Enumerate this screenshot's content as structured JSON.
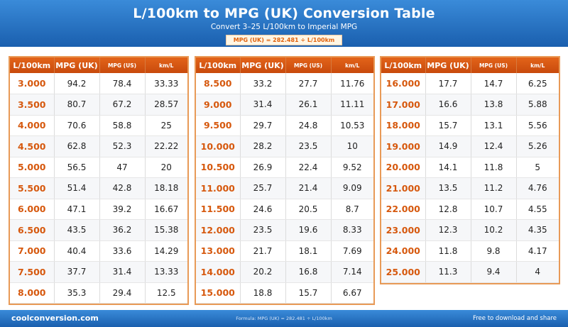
{
  "header": {
    "title": "L/100km to MPG (UK) Conversion Table",
    "subtitle": "Convert 3–25 L/100km to Imperial MPG",
    "formula_badge": "MPG (UK) = 282.481 ÷ L/100km"
  },
  "columns": [
    "L/100km",
    "MPG (UK)",
    "MPG (US)",
    "km/L"
  ],
  "tables": [
    [
      [
        "3.000",
        "94.2",
        "78.4",
        "33.33"
      ],
      [
        "3.500",
        "80.7",
        "67.2",
        "28.57"
      ],
      [
        "4.000",
        "70.6",
        "58.8",
        "25"
      ],
      [
        "4.500",
        "62.8",
        "52.3",
        "22.22"
      ],
      [
        "5.000",
        "56.5",
        "47",
        "20"
      ],
      [
        "5.500",
        "51.4",
        "42.8",
        "18.18"
      ],
      [
        "6.000",
        "47.1",
        "39.2",
        "16.67"
      ],
      [
        "6.500",
        "43.5",
        "36.2",
        "15.38"
      ],
      [
        "7.000",
        "40.4",
        "33.6",
        "14.29"
      ],
      [
        "7.500",
        "37.7",
        "31.4",
        "13.33"
      ],
      [
        "8.000",
        "35.3",
        "29.4",
        "12.5"
      ]
    ],
    [
      [
        "8.500",
        "33.2",
        "27.7",
        "11.76"
      ],
      [
        "9.000",
        "31.4",
        "26.1",
        "11.11"
      ],
      [
        "9.500",
        "29.7",
        "24.8",
        "10.53"
      ],
      [
        "10.000",
        "28.2",
        "23.5",
        "10"
      ],
      [
        "10.500",
        "26.9",
        "22.4",
        "9.52"
      ],
      [
        "11.000",
        "25.7",
        "21.4",
        "9.09"
      ],
      [
        "11.500",
        "24.6",
        "20.5",
        "8.7"
      ],
      [
        "12.000",
        "23.5",
        "19.6",
        "8.33"
      ],
      [
        "13.000",
        "21.7",
        "18.1",
        "7.69"
      ],
      [
        "14.000",
        "20.2",
        "16.8",
        "7.14"
      ],
      [
        "15.000",
        "18.8",
        "15.7",
        "6.67"
      ]
    ],
    [
      [
        "16.000",
        "17.7",
        "14.7",
        "6.25"
      ],
      [
        "17.000",
        "16.6",
        "13.8",
        "5.88"
      ],
      [
        "18.000",
        "15.7",
        "13.1",
        "5.56"
      ],
      [
        "19.000",
        "14.9",
        "12.4",
        "5.26"
      ],
      [
        "20.000",
        "14.1",
        "11.8",
        "5"
      ],
      [
        "21.000",
        "13.5",
        "11.2",
        "4.76"
      ],
      [
        "22.000",
        "12.8",
        "10.7",
        "4.55"
      ],
      [
        "23.000",
        "12.3",
        "10.2",
        "4.35"
      ],
      [
        "24.000",
        "11.8",
        "9.8",
        "4.17"
      ],
      [
        "25.000",
        "11.3",
        "9.4",
        "4"
      ]
    ]
  ],
  "footer": {
    "site": "coolconversion.com",
    "formula": "Formula: MPG (UK) = 282.481 ÷ L/100km",
    "tagline": "Free to download and share"
  },
  "colors": {
    "header_blue": "#2a74c6",
    "accent_orange": "#d6580d",
    "table_border": "#e89a57"
  }
}
